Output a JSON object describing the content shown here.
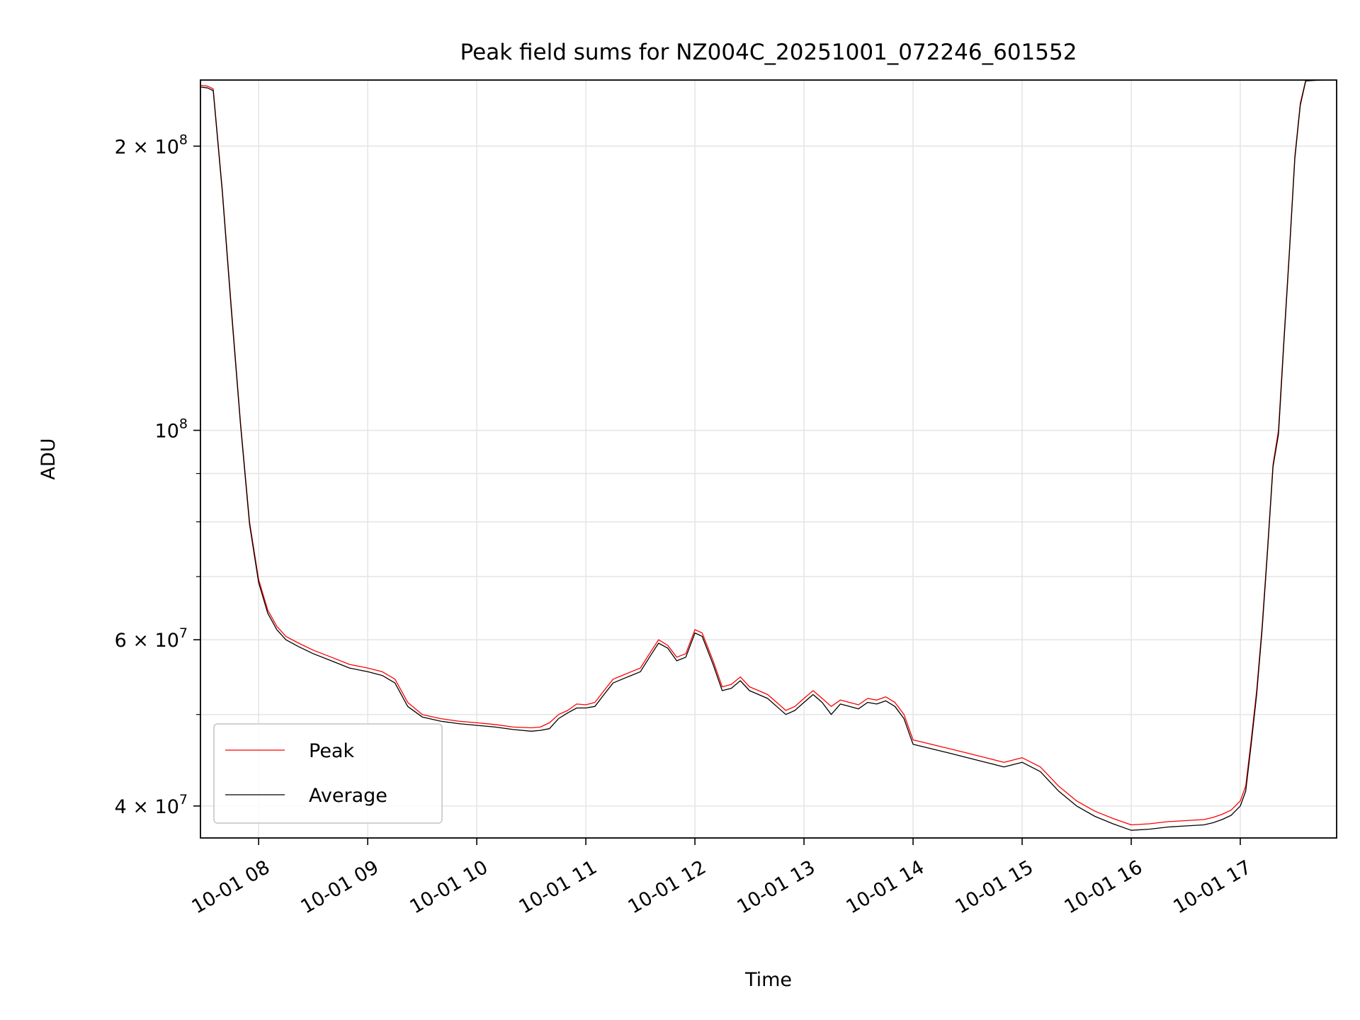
{
  "chart_data": {
    "type": "line",
    "title": "Peak field sums for NZ004C_20251001_072246_601552",
    "xlabel": "Time",
    "ylabel": "ADU",
    "yscale": "log",
    "xlim": [
      "2025-10-01 07:28",
      "2025-10-01 17:53"
    ],
    "ylim": [
      37000000,
      235000000
    ],
    "grid": true,
    "legend_position": "lower-left",
    "x_tick_values": [
      "2025-10-01 08:00",
      "2025-10-01 09:00",
      "2025-10-01 10:00",
      "2025-10-01 11:00",
      "2025-10-01 12:00",
      "2025-10-01 13:00",
      "2025-10-01 14:00",
      "2025-10-01 15:00",
      "2025-10-01 16:00",
      "2025-10-01 17:00"
    ],
    "x_tick_labels": [
      "10-01 08",
      "10-01 09",
      "10-01 10",
      "10-01 11",
      "10-01 12",
      "10-01 13",
      "10-01 14",
      "10-01 15",
      "10-01 16",
      "10-01 17"
    ],
    "y_tick_values": [
      40000000,
      60000000,
      100000000,
      200000000
    ],
    "y_tick_mantissas": [
      "4",
      "6",
      "",
      "2"
    ],
    "y_tick_exponents": [
      "7",
      "7",
      "8",
      "8"
    ],
    "y_minor_tick_values": [
      50000000,
      70000000,
      80000000,
      90000000
    ],
    "series": [
      {
        "name": "Peak",
        "color": "#ff0000",
        "x": [
          "2025-10-01 07:28",
          "2025-10-01 07:32",
          "2025-10-01 07:35",
          "2025-10-01 07:40",
          "2025-10-01 07:45",
          "2025-10-01 07:50",
          "2025-10-01 07:55",
          "2025-10-01 08:00",
          "2025-10-01 08:05",
          "2025-10-01 08:10",
          "2025-10-01 08:15",
          "2025-10-01 08:22",
          "2025-10-01 08:30",
          "2025-10-01 08:40",
          "2025-10-01 08:50",
          "2025-10-01 09:00",
          "2025-10-01 09:08",
          "2025-10-01 09:15",
          "2025-10-01 09:22",
          "2025-10-01 09:30",
          "2025-10-01 09:40",
          "2025-10-01 09:50",
          "2025-10-01 10:00",
          "2025-10-01 10:10",
          "2025-10-01 10:20",
          "2025-10-01 10:30",
          "2025-10-01 10:35",
          "2025-10-01 10:40",
          "2025-10-01 10:45",
          "2025-10-01 10:50",
          "2025-10-01 10:55",
          "2025-10-01 11:00",
          "2025-10-01 11:05",
          "2025-10-01 11:10",
          "2025-10-01 11:15",
          "2025-10-01 11:20",
          "2025-10-01 11:25",
          "2025-10-01 11:30",
          "2025-10-01 11:35",
          "2025-10-01 11:40",
          "2025-10-01 11:45",
          "2025-10-01 11:50",
          "2025-10-01 11:55",
          "2025-10-01 12:00",
          "2025-10-01 12:04",
          "2025-10-01 12:10",
          "2025-10-01 12:15",
          "2025-10-01 12:20",
          "2025-10-01 12:25",
          "2025-10-01 12:30",
          "2025-10-01 12:35",
          "2025-10-01 12:40",
          "2025-10-01 12:45",
          "2025-10-01 12:50",
          "2025-10-01 12:55",
          "2025-10-01 13:00",
          "2025-10-01 13:05",
          "2025-10-01 13:10",
          "2025-10-01 13:15",
          "2025-10-01 13:20",
          "2025-10-01 13:25",
          "2025-10-01 13:30",
          "2025-10-01 13:35",
          "2025-10-01 13:40",
          "2025-10-01 13:45",
          "2025-10-01 13:50",
          "2025-10-01 13:55",
          "2025-10-01 14:00",
          "2025-10-01 14:10",
          "2025-10-01 14:20",
          "2025-10-01 14:30",
          "2025-10-01 14:40",
          "2025-10-01 14:50",
          "2025-10-01 15:00",
          "2025-10-01 15:10",
          "2025-10-01 15:20",
          "2025-10-01 15:30",
          "2025-10-01 15:40",
          "2025-10-01 15:50",
          "2025-10-01 16:00",
          "2025-10-01 16:10",
          "2025-10-01 16:20",
          "2025-10-01 16:30",
          "2025-10-01 16:40",
          "2025-10-01 16:45",
          "2025-10-01 16:50",
          "2025-10-01 16:55",
          "2025-10-01 17:00",
          "2025-10-01 17:03",
          "2025-10-01 17:06",
          "2025-10-01 17:09",
          "2025-10-01 17:12",
          "2025-10-01 17:15",
          "2025-10-01 17:18",
          "2025-10-01 17:21",
          "2025-10-01 17:24",
          "2025-10-01 17:27",
          "2025-10-01 17:30",
          "2025-10-01 17:33",
          "2025-10-01 17:36",
          "2025-10-01 17:53"
        ],
        "values": [
          232000000,
          231500000,
          230000000,
          180000000,
          135000000,
          102000000,
          80000000,
          69500000,
          64500000,
          62000000,
          60500000,
          59500000,
          58500000,
          57500000,
          56500000,
          56000000,
          55500000,
          54500000,
          51500000,
          50000000,
          49500000,
          49200000,
          49000000,
          48800000,
          48500000,
          48400000,
          48500000,
          49000000,
          50000000,
          50500000,
          51300000,
          51200000,
          51500000,
          53000000,
          54500000,
          55000000,
          55500000,
          56000000,
          58000000,
          60000000,
          59200000,
          57500000,
          58000000,
          61500000,
          61000000,
          57000000,
          53500000,
          53800000,
          54800000,
          53500000,
          53000000,
          52500000,
          51500000,
          50500000,
          51000000,
          52000000,
          53000000,
          52000000,
          51000000,
          51800000,
          51500000,
          51200000,
          52000000,
          51800000,
          52200000,
          51500000,
          50000000,
          47000000,
          46500000,
          46000000,
          45500000,
          45000000,
          44500000,
          45000000,
          44000000,
          42000000,
          40500000,
          39500000,
          38800000,
          38200000,
          38300000,
          38500000,
          38600000,
          38700000,
          38900000,
          39200000,
          39600000,
          40500000,
          42000000,
          47000000,
          53000000,
          62000000,
          75000000,
          92000000,
          100000000,
          125000000,
          155000000,
          195000000,
          222000000,
          235000000,
          236000000
        ]
      },
      {
        "name": "Average",
        "color": "#000000",
        "x": [
          "2025-10-01 07:28",
          "2025-10-01 07:32",
          "2025-10-01 07:35",
          "2025-10-01 07:40",
          "2025-10-01 07:45",
          "2025-10-01 07:50",
          "2025-10-01 07:55",
          "2025-10-01 08:00",
          "2025-10-01 08:05",
          "2025-10-01 08:10",
          "2025-10-01 08:15",
          "2025-10-01 08:22",
          "2025-10-01 08:30",
          "2025-10-01 08:40",
          "2025-10-01 08:50",
          "2025-10-01 09:00",
          "2025-10-01 09:08",
          "2025-10-01 09:15",
          "2025-10-01 09:22",
          "2025-10-01 09:30",
          "2025-10-01 09:40",
          "2025-10-01 09:50",
          "2025-10-01 10:00",
          "2025-10-01 10:10",
          "2025-10-01 10:20",
          "2025-10-01 10:30",
          "2025-10-01 10:35",
          "2025-10-01 10:40",
          "2025-10-01 10:45",
          "2025-10-01 10:50",
          "2025-10-01 10:55",
          "2025-10-01 11:00",
          "2025-10-01 11:05",
          "2025-10-01 11:10",
          "2025-10-01 11:15",
          "2025-10-01 11:20",
          "2025-10-01 11:25",
          "2025-10-01 11:30",
          "2025-10-01 11:35",
          "2025-10-01 11:40",
          "2025-10-01 11:45",
          "2025-10-01 11:50",
          "2025-10-01 11:55",
          "2025-10-01 12:00",
          "2025-10-01 12:04",
          "2025-10-01 12:10",
          "2025-10-01 12:15",
          "2025-10-01 12:20",
          "2025-10-01 12:25",
          "2025-10-01 12:30",
          "2025-10-01 12:35",
          "2025-10-01 12:40",
          "2025-10-01 12:45",
          "2025-10-01 12:50",
          "2025-10-01 12:55",
          "2025-10-01 13:00",
          "2025-10-01 13:05",
          "2025-10-01 13:10",
          "2025-10-01 13:15",
          "2025-10-01 13:20",
          "2025-10-01 13:25",
          "2025-10-01 13:30",
          "2025-10-01 13:35",
          "2025-10-01 13:40",
          "2025-10-01 13:45",
          "2025-10-01 13:50",
          "2025-10-01 13:55",
          "2025-10-01 14:00",
          "2025-10-01 14:10",
          "2025-10-01 14:20",
          "2025-10-01 14:30",
          "2025-10-01 14:40",
          "2025-10-01 14:50",
          "2025-10-01 15:00",
          "2025-10-01 15:10",
          "2025-10-01 15:20",
          "2025-10-01 15:30",
          "2025-10-01 15:40",
          "2025-10-01 15:50",
          "2025-10-01 16:00",
          "2025-10-01 16:10",
          "2025-10-01 16:20",
          "2025-10-01 16:30",
          "2025-10-01 16:40",
          "2025-10-01 16:45",
          "2025-10-01 16:50",
          "2025-10-01 16:55",
          "2025-10-01 17:00",
          "2025-10-01 17:03",
          "2025-10-01 17:06",
          "2025-10-01 17:09",
          "2025-10-01 17:12",
          "2025-10-01 17:15",
          "2025-10-01 17:18",
          "2025-10-01 17:21",
          "2025-10-01 17:24",
          "2025-10-01 17:27",
          "2025-10-01 17:30",
          "2025-10-01 17:33",
          "2025-10-01 17:36",
          "2025-10-01 17:53"
        ],
        "values": [
          231000000,
          230500000,
          229000000,
          179000000,
          134000000,
          101500000,
          79500000,
          69000000,
          64000000,
          61500000,
          60000000,
          59000000,
          58000000,
          57000000,
          56000000,
          55500000,
          55000000,
          54000000,
          51000000,
          49700000,
          49200000,
          48900000,
          48700000,
          48500000,
          48200000,
          48000000,
          48100000,
          48300000,
          49500000,
          50200000,
          50800000,
          50800000,
          51000000,
          52500000,
          54000000,
          54500000,
          55000000,
          55500000,
          57500000,
          59500000,
          58800000,
          57000000,
          57500000,
          61000000,
          60500000,
          56500000,
          53000000,
          53300000,
          54300000,
          53000000,
          52500000,
          52000000,
          51000000,
          50000000,
          50500000,
          51500000,
          52500000,
          51500000,
          50000000,
          51300000,
          51000000,
          50700000,
          51500000,
          51300000,
          51700000,
          51000000,
          49500000,
          46500000,
          46000000,
          45500000,
          45000000,
          44500000,
          44000000,
          44500000,
          43500000,
          41500000,
          40000000,
          39000000,
          38300000,
          37700000,
          37800000,
          38000000,
          38100000,
          38200000,
          38400000,
          38700000,
          39100000,
          40000000,
          41500000,
          46500000,
          52500000,
          61500000,
          74500000,
          91500000,
          99000000,
          124000000,
          154000000,
          194000000,
          221000000,
          234500000,
          235500000
        ]
      }
    ]
  }
}
